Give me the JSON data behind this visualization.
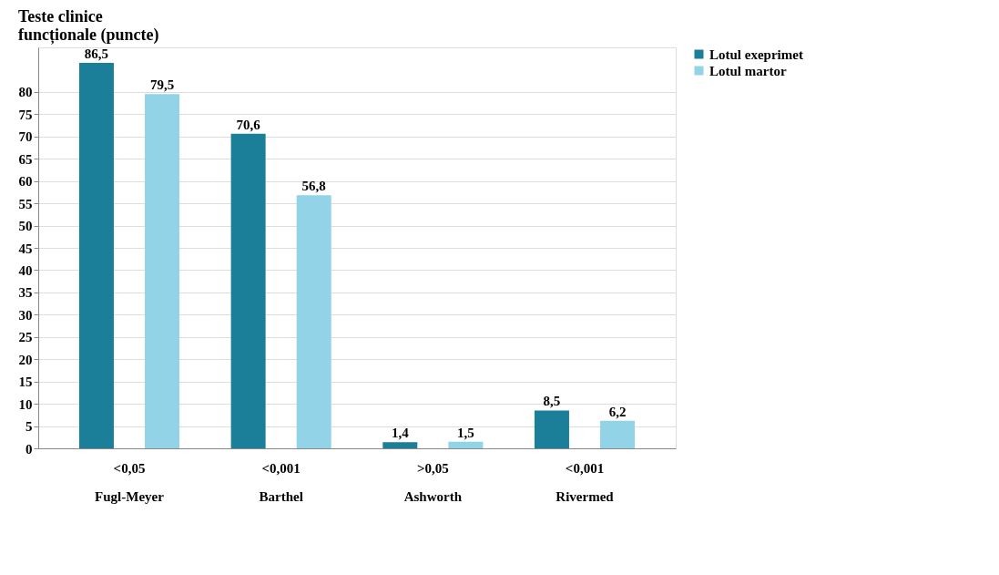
{
  "chart_data": {
    "type": "bar",
    "title": [
      "Teste clinice",
      "funcționale (puncte)"
    ],
    "categories": [
      "Fugl-Meyer",
      "Barthel",
      "Ashworth",
      "Rivermed"
    ],
    "series": [
      {
        "name": "Lotul exeprimet",
        "color": "#1b7f99",
        "values": [
          86.5,
          70.6,
          1.4,
          8.5
        ],
        "value_labels": [
          "86,5",
          "70,6",
          "1,4",
          "8,5"
        ]
      },
      {
        "name": "Lotul martor",
        "color": "#93d3e8",
        "values": [
          79.5,
          56.8,
          1.5,
          6.2
        ],
        "value_labels": [
          "79,5",
          "56,8",
          "1,5",
          "6,2"
        ]
      }
    ],
    "ylim": [
      0,
      90
    ],
    "yticks": [
      0,
      5,
      10,
      15,
      20,
      25,
      30,
      35,
      40,
      45,
      50,
      55,
      60,
      65,
      70,
      75,
      80
    ],
    "grid": "y",
    "legend": "top right",
    "annotations": [
      "<0,05",
      "<0,001",
      ">0,05",
      "<0,001"
    ]
  }
}
